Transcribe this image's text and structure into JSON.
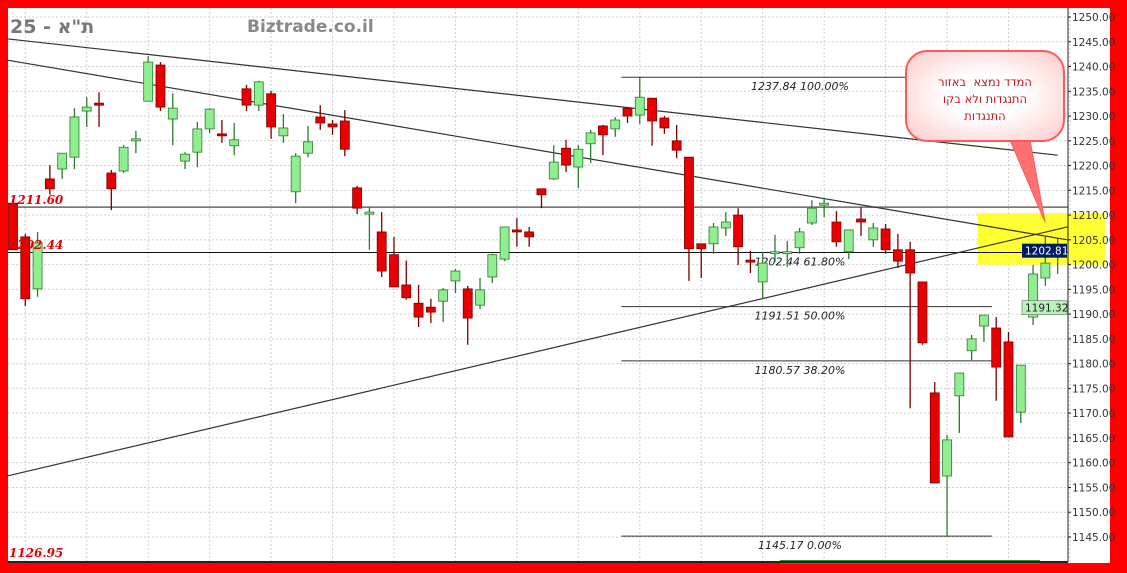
{
  "header": {
    "title": "25 - ת\"א",
    "watermark": "Biztrade.co.il"
  },
  "annotation": {
    "lines": [
      "המדד נמצא  באזור",
      "התנגדות ולא בקו",
      "התנגדות"
    ]
  },
  "colors": {
    "up_fill": "#90ee90",
    "up_edge": "#2f7a2f",
    "down_fill": "#e80000",
    "down_edge": "#7a0000",
    "border": "#ff0000",
    "zone": "#ffff33",
    "last_price_bg": "#001a66",
    "ma_bg": "#b9f2b9",
    "level_label": "#e00000"
  },
  "chart_data": {
    "type": "candlestick",
    "title": "25 - ת\"א",
    "ylim": [
      1145,
      1250
    ],
    "yticks": [
      "1250.00",
      "1245.00",
      "1240.00",
      "1235.00",
      "1230.00",
      "1225.00",
      "1220.00",
      "1215.00",
      "1210.00",
      "1205.00",
      "1200.00",
      "1195.00",
      "1190.00",
      "1185.00",
      "1180.00",
      "1175.00",
      "1170.00",
      "1165.00",
      "1160.00",
      "1155.00",
      "1150.00",
      "1145.00"
    ],
    "grid": true,
    "candles_ohlc": [
      [
        1212.4,
        1212.4,
        1203.0,
        1203.0
      ],
      [
        1205.6,
        1206.2,
        1191.6,
        1193.1
      ],
      [
        1195.1,
        1206.6,
        1193.5,
        1204.4
      ],
      [
        1217.3,
        1220.1,
        1214.1,
        1215.3
      ],
      [
        1219.3,
        1222.5,
        1217.3,
        1222.5
      ],
      [
        1221.7,
        1231.6,
        1219.3,
        1229.8
      ],
      [
        1231.0,
        1233.8,
        1227.8,
        1231.8
      ],
      [
        1232.6,
        1234.8,
        1227.8,
        1232.4
      ],
      [
        1218.5,
        1219.1,
        1211.0,
        1215.3
      ],
      [
        1218.9,
        1224.1,
        1218.5,
        1223.7
      ],
      [
        1225.0,
        1227.0,
        1222.5,
        1225.4
      ],
      [
        1233.0,
        1242.1,
        1233.0,
        1240.9
      ],
      [
        1240.3,
        1240.9,
        1231.0,
        1231.8
      ],
      [
        1229.4,
        1234.6,
        1224.1,
        1231.6
      ],
      [
        1220.9,
        1222.7,
        1219.3,
        1222.3
      ],
      [
        1222.7,
        1228.8,
        1219.7,
        1227.4
      ],
      [
        1227.4,
        1231.6,
        1226.6,
        1231.4
      ],
      [
        1226.4,
        1229.2,
        1224.6,
        1226.0
      ],
      [
        1224.0,
        1228.6,
        1222.1,
        1225.2
      ],
      [
        1235.5,
        1236.3,
        1231.0,
        1232.2
      ],
      [
        1232.2,
        1237.1,
        1231.0,
        1236.9
      ],
      [
        1234.5,
        1235.1,
        1225.4,
        1227.8
      ],
      [
        1226.0,
        1230.4,
        1224.6,
        1227.6
      ],
      [
        1214.7,
        1222.5,
        1212.4,
        1221.9
      ],
      [
        1222.5,
        1228.0,
        1221.7,
        1224.8
      ],
      [
        1229.8,
        1232.2,
        1227.2,
        1228.6
      ],
      [
        1228.4,
        1229.2,
        1226.2,
        1227.8
      ],
      [
        1229.0,
        1231.2,
        1221.9,
        1223.3
      ],
      [
        1215.5,
        1215.9,
        1210.2,
        1211.4
      ],
      [
        1210.2,
        1211.6,
        1203.0,
        1210.6
      ],
      [
        1206.6,
        1210.6,
        1197.5,
        1198.7
      ],
      [
        1202.0,
        1205.6,
        1195.5,
        1195.5
      ],
      [
        1195.9,
        1200.8,
        1192.9,
        1193.3
      ],
      [
        1192.2,
        1195.9,
        1187.4,
        1189.4
      ],
      [
        1191.4,
        1193.1,
        1188.2,
        1190.4
      ],
      [
        1192.6,
        1195.3,
        1188.4,
        1194.9
      ],
      [
        1196.7,
        1199.1,
        1194.3,
        1198.7
      ],
      [
        1195.1,
        1195.7,
        1183.8,
        1189.2
      ],
      [
        1191.8,
        1197.3,
        1191.0,
        1194.9
      ],
      [
        1197.5,
        1202.2,
        1196.3,
        1202.0
      ],
      [
        1201.1,
        1207.6,
        1200.7,
        1207.6
      ],
      [
        1207.0,
        1209.4,
        1203.6,
        1206.6
      ],
      [
        1206.6,
        1207.6,
        1203.6,
        1205.6
      ],
      [
        1215.3,
        1215.3,
        1211.4,
        1214.1
      ],
      [
        1217.3,
        1224.1,
        1217.1,
        1220.7
      ],
      [
        1223.5,
        1225.2,
        1218.7,
        1220.1
      ],
      [
        1219.7,
        1224.1,
        1215.5,
        1223.3
      ],
      [
        1224.4,
        1227.2,
        1220.5,
        1226.6
      ],
      [
        1228.0,
        1228.2,
        1222.1,
        1226.2
      ],
      [
        1227.4,
        1229.8,
        1225.8,
        1229.2
      ],
      [
        1231.6,
        1231.8,
        1228.6,
        1230.0
      ],
      [
        1230.2,
        1237.84,
        1228.4,
        1233.8
      ],
      [
        1233.6,
        1233.6,
        1224.0,
        1229.0
      ],
      [
        1229.6,
        1230.0,
        1226.4,
        1227.6
      ],
      [
        1225.0,
        1228.2,
        1221.5,
        1223.1
      ],
      [
        1221.7,
        1221.7,
        1196.7,
        1203.2
      ],
      [
        1204.2,
        1204.2,
        1197.3,
        1203.2
      ],
      [
        1204.2,
        1208.4,
        1202.2,
        1207.6
      ],
      [
        1207.4,
        1210.6,
        1205.8,
        1208.6
      ],
      [
        1210.0,
        1211.4,
        1199.9,
        1203.6
      ],
      [
        1200.9,
        1202.8,
        1198.3,
        1200.7
      ],
      [
        1196.5,
        1202.6,
        1193.1,
        1200.3
      ],
      [
        1202.4,
        1206.0,
        1200.5,
        1202.6
      ],
      [
        1202.2,
        1204.8,
        1199.5,
        1202.6
      ],
      [
        1203.4,
        1207.4,
        1202.2,
        1206.6
      ],
      [
        1208.4,
        1213.0,
        1208.0,
        1211.4
      ],
      [
        1212.0,
        1213.4,
        1209.6,
        1212.4
      ],
      [
        1208.6,
        1210.8,
        1203.6,
        1204.6
      ],
      [
        1202.6,
        1207.0,
        1201.1,
        1207.0
      ],
      [
        1209.2,
        1211.6,
        1205.8,
        1208.6
      ],
      [
        1205.0,
        1208.4,
        1203.6,
        1207.4
      ],
      [
        1207.2,
        1208.2,
        1202.2,
        1203.0
      ],
      [
        1203.0,
        1206.2,
        1199.3,
        1200.7
      ],
      [
        1203.0,
        1204.6,
        1171.0,
        1198.3
      ],
      [
        1196.5,
        1196.5,
        1183.8,
        1184.2
      ],
      [
        1174.1,
        1176.3,
        1155.9,
        1155.9
      ],
      [
        1157.3,
        1165.6,
        1145.17,
        1164.6
      ],
      [
        1173.5,
        1178.1,
        1166.0,
        1178.1
      ],
      [
        1182.6,
        1185.8,
        1180.7,
        1185.0
      ],
      [
        1187.6,
        1189.8,
        1184.4,
        1189.8
      ],
      [
        1187.2,
        1189.4,
        1172.5,
        1179.3
      ],
      [
        1184.4,
        1186.4,
        1165.2,
        1165.2
      ],
      [
        1170.2,
        1179.7,
        1168.0,
        1179.7
      ],
      [
        1189.4,
        1199.9,
        1187.8,
        1198.1
      ],
      [
        1197.3,
        1205.6,
        1195.7,
        1200.3
      ],
      [
        1201.8,
        1205.4,
        1198.1,
        1202.81
      ]
    ],
    "trendlines": [
      {
        "from": [
          -0.5,
          1245.6
        ],
        "to": [
          85,
          1222.1
        ]
      },
      {
        "from": [
          -0.5,
          1241.3
        ],
        "to": [
          85.8,
          1205.0
        ]
      },
      {
        "from": [
          -0.5,
          1157.3
        ],
        "to": [
          85.8,
          1207.6
        ]
      }
    ],
    "horizontal_levels": [
      {
        "price": 1211.6,
        "label": "1211.60"
      },
      {
        "price": 1202.44,
        "label": "1202.44"
      }
    ],
    "fibonacci": {
      "from_index": 49.5,
      "to_index": 79,
      "levels": [
        {
          "price": 1237.84,
          "label": "1237.84 100.00%"
        },
        {
          "price": 1202.44,
          "label": "1202.44 61.80%"
        },
        {
          "price": 1191.51,
          "label": "1191.51 50.00%"
        },
        {
          "price": 1180.57,
          "label": "1180.57 38.20%"
        },
        {
          "price": 1145.17,
          "label": "1145.17 0.00%"
        }
      ]
    },
    "resistance_zone": {
      "from_index": 78.5,
      "price_low": 1200.0,
      "price_high": 1210.4
    },
    "last_price": "1202.81",
    "indicator_price": {
      "price": 1191.32,
      "label": "1191.32"
    },
    "low_label": "1126.95"
  }
}
